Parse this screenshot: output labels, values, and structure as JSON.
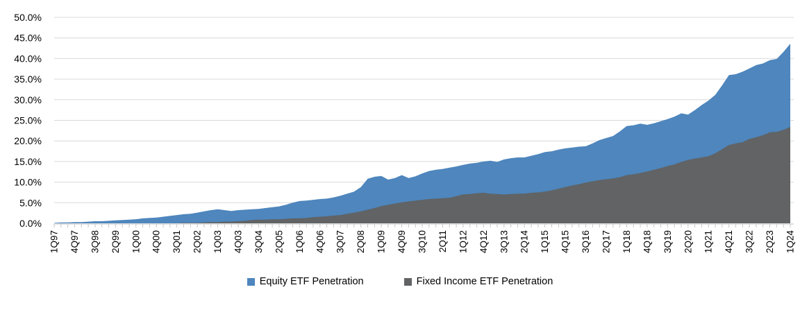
{
  "chart_data": {
    "type": "area",
    "title": "",
    "xlabel": "",
    "ylabel": "",
    "ylim": [
      0,
      50
    ],
    "y_tick_step": 5,
    "y_tick_labels": [
      "50.0%",
      "45.0%",
      "40.0%",
      "35.0%",
      "30.0%",
      "25.0%",
      "20.0%",
      "15.0%",
      "10.0%",
      "5.0%",
      "0.0%"
    ],
    "x_label_every": 3,
    "grid": "horizontal",
    "legend_position": "bottom-center",
    "gridline_color": "#D9D9D9",
    "axis_color": "#BFBFBF",
    "tick_color": "#C6C6C6",
    "text_color": "#000000",
    "categories": [
      "1Q97",
      "2Q97",
      "3Q97",
      "4Q97",
      "1Q98",
      "2Q98",
      "3Q98",
      "4Q98",
      "1Q99",
      "2Q99",
      "3Q99",
      "4Q99",
      "1Q00",
      "2Q00",
      "3Q00",
      "4Q00",
      "1Q01",
      "2Q01",
      "3Q01",
      "4Q01",
      "1Q02",
      "2Q02",
      "3Q02",
      "4Q02",
      "1Q03",
      "2Q03",
      "3Q03",
      "4Q03",
      "1Q04",
      "2Q04",
      "3Q04",
      "4Q04",
      "1Q05",
      "2Q05",
      "3Q05",
      "4Q05",
      "1Q06",
      "2Q06",
      "3Q06",
      "4Q06",
      "1Q07",
      "2Q07",
      "3Q07",
      "4Q07",
      "1Q08",
      "2Q08",
      "3Q08",
      "4Q08",
      "1Q09",
      "2Q09",
      "3Q09",
      "4Q09",
      "1Q10",
      "2Q10",
      "3Q10",
      "4Q10",
      "1Q11",
      "2Q11",
      "3Q11",
      "4Q11",
      "1Q12",
      "2Q12",
      "3Q12",
      "4Q12",
      "1Q13",
      "2Q13",
      "3Q13",
      "4Q13",
      "1Q14",
      "2Q14",
      "3Q14",
      "4Q14",
      "1Q15",
      "2Q15",
      "3Q15",
      "4Q15",
      "1Q16",
      "2Q16",
      "3Q16",
      "4Q16",
      "1Q17",
      "2Q17",
      "3Q17",
      "4Q17",
      "1Q18",
      "2Q18",
      "3Q18",
      "4Q18",
      "1Q19",
      "2Q19",
      "3Q19",
      "4Q19",
      "1Q20",
      "2Q20",
      "3Q20",
      "4Q20",
      "1Q21",
      "2Q21",
      "3Q21",
      "4Q21",
      "1Q22",
      "2Q22",
      "3Q22",
      "4Q22",
      "1Q23",
      "2Q23",
      "3Q23",
      "4Q23",
      "1Q24"
    ],
    "series": [
      {
        "name": "Equity ETF Penetration",
        "color": "#4E86BD",
        "values": [
          0.1,
          0.2,
          0.2,
          0.3,
          0.3,
          0.4,
          0.5,
          0.5,
          0.6,
          0.7,
          0.8,
          0.9,
          1.0,
          1.2,
          1.3,
          1.4,
          1.6,
          1.8,
          2.0,
          2.2,
          2.3,
          2.6,
          2.9,
          3.2,
          3.4,
          3.2,
          3.0,
          3.2,
          3.3,
          3.4,
          3.5,
          3.7,
          3.9,
          4.1,
          4.5,
          5.0,
          5.4,
          5.5,
          5.7,
          5.9,
          6.0,
          6.3,
          6.7,
          7.2,
          7.7,
          8.8,
          10.8,
          11.3,
          11.5,
          10.6,
          11.0,
          11.7,
          11.0,
          11.4,
          12.1,
          12.7,
          13.0,
          13.2,
          13.5,
          13.8,
          14.2,
          14.5,
          14.7,
          15.0,
          15.2,
          14.9,
          15.5,
          15.8,
          16.0,
          16.0,
          16.4,
          16.8,
          17.3,
          17.5,
          17.9,
          18.2,
          18.4,
          18.6,
          18.7,
          19.4,
          20.2,
          20.7,
          21.2,
          22.3,
          23.6,
          23.8,
          24.2,
          23.9,
          24.3,
          24.8,
          25.3,
          25.9,
          26.7,
          26.4,
          27.5,
          28.7,
          29.8,
          31.2,
          33.5,
          36.0,
          36.2,
          36.8,
          37.6,
          38.4,
          38.8,
          39.6,
          39.9,
          41.6,
          43.6
        ]
      },
      {
        "name": "Fixed Income ETF Penetration",
        "color": "#616365",
        "values": [
          0.0,
          0.0,
          0.0,
          0.0,
          0.0,
          0.0,
          0.0,
          0.0,
          0.0,
          0.0,
          0.0,
          0.0,
          0.0,
          0.0,
          0.0,
          0.0,
          0.0,
          0.0,
          0.0,
          0.1,
          0.1,
          0.1,
          0.2,
          0.3,
          0.3,
          0.4,
          0.4,
          0.5,
          0.6,
          0.8,
          0.9,
          0.9,
          1.0,
          1.0,
          1.1,
          1.2,
          1.2,
          1.3,
          1.5,
          1.6,
          1.7,
          1.9,
          2.0,
          2.3,
          2.6,
          2.9,
          3.3,
          3.7,
          4.2,
          4.5,
          4.8,
          5.1,
          5.3,
          5.5,
          5.7,
          5.9,
          6.0,
          6.1,
          6.2,
          6.6,
          7.0,
          7.1,
          7.3,
          7.4,
          7.2,
          7.1,
          7.0,
          7.1,
          7.2,
          7.2,
          7.4,
          7.5,
          7.7,
          8.0,
          8.4,
          8.8,
          9.2,
          9.5,
          9.9,
          10.2,
          10.5,
          10.7,
          10.9,
          11.2,
          11.7,
          11.9,
          12.2,
          12.6,
          13.0,
          13.4,
          13.9,
          14.3,
          14.9,
          15.4,
          15.7,
          16.0,
          16.3,
          17.0,
          18.0,
          19.0,
          19.4,
          19.7,
          20.5,
          20.9,
          21.4,
          22.1,
          22.2,
          22.7,
          23.4
        ]
      }
    ]
  }
}
